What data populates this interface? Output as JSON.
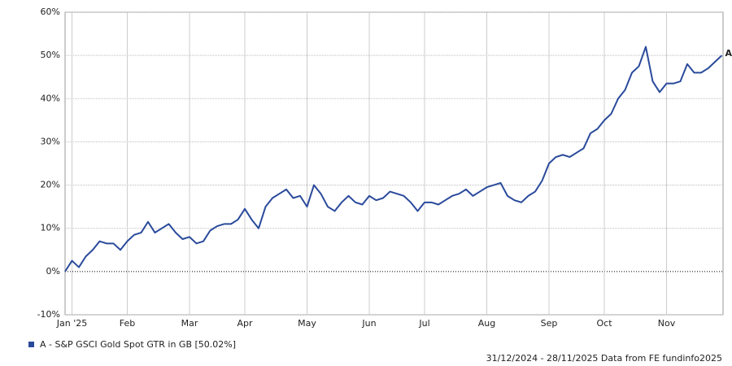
{
  "chart_data": {
    "type": "line",
    "categories": [
      null,
      "Jan '25",
      null,
      null,
      null,
      null,
      null,
      null,
      null,
      "Feb",
      null,
      null,
      null,
      null,
      null,
      null,
      null,
      null,
      "Mar",
      null,
      null,
      null,
      null,
      null,
      null,
      null,
      "Apr",
      null,
      null,
      null,
      null,
      null,
      null,
      null,
      null,
      "May",
      null,
      null,
      null,
      null,
      null,
      null,
      null,
      null,
      "Jun",
      null,
      null,
      null,
      null,
      null,
      null,
      null,
      "Jul",
      null,
      null,
      null,
      null,
      null,
      null,
      null,
      null,
      "Aug",
      null,
      null,
      null,
      null,
      null,
      null,
      null,
      null,
      "Sep",
      null,
      null,
      null,
      null,
      null,
      null,
      null,
      "Oct",
      null,
      null,
      null,
      null,
      null,
      null,
      null,
      null,
      "Nov",
      null,
      null,
      null,
      null,
      null,
      null,
      null,
      null
    ],
    "series": [
      {
        "name": "A - S&P GSCI Gold Spot GTR in GB [50.02%]",
        "color": "#2a4a9b",
        "values": [
          0,
          2.5,
          1,
          3.5,
          5,
          7,
          6.5,
          6.5,
          5,
          7,
          8.5,
          9,
          11.5,
          9,
          10,
          11,
          9,
          7.5,
          8,
          6.5,
          7,
          9.5,
          10.5,
          11,
          11,
          12,
          14.5,
          12,
          10,
          15,
          17,
          18,
          19,
          17,
          17.5,
          15,
          20,
          18,
          15,
          14,
          16,
          17.5,
          16,
          15.5,
          17.5,
          16.5,
          17,
          18.5,
          18,
          17.5,
          16,
          14,
          16,
          16,
          15.5,
          16.5,
          17.5,
          18,
          19,
          17.5,
          18.5,
          19.5,
          20,
          20.5,
          17.5,
          16.5,
          16,
          17.5,
          18.5,
          21,
          25,
          26.5,
          27,
          26.5,
          27.5,
          28.5,
          32,
          33,
          35,
          36.5,
          40,
          42,
          46,
          47.5,
          52,
          44,
          41.5,
          43.5,
          43.5,
          44,
          48,
          46,
          46,
          47,
          48.5,
          50
        ]
      }
    ],
    "end_label": "A",
    "ylim": [
      -10,
      60
    ],
    "yticks": [
      {
        "value": -10,
        "label": "-10%"
      },
      {
        "value": 0,
        "label": "0%"
      },
      {
        "value": 10,
        "label": "10%"
      },
      {
        "value": 20,
        "label": "20%"
      },
      {
        "value": 30,
        "label": "30%"
      },
      {
        "value": 40,
        "label": "40%"
      },
      {
        "value": 50,
        "label": "50%"
      },
      {
        "value": 60,
        "label": "60%"
      }
    ],
    "grid": true,
    "legend": "bottom-left",
    "footer": "31/12/2024 - 28/11/2025 Data from FE fundinfo2025"
  }
}
